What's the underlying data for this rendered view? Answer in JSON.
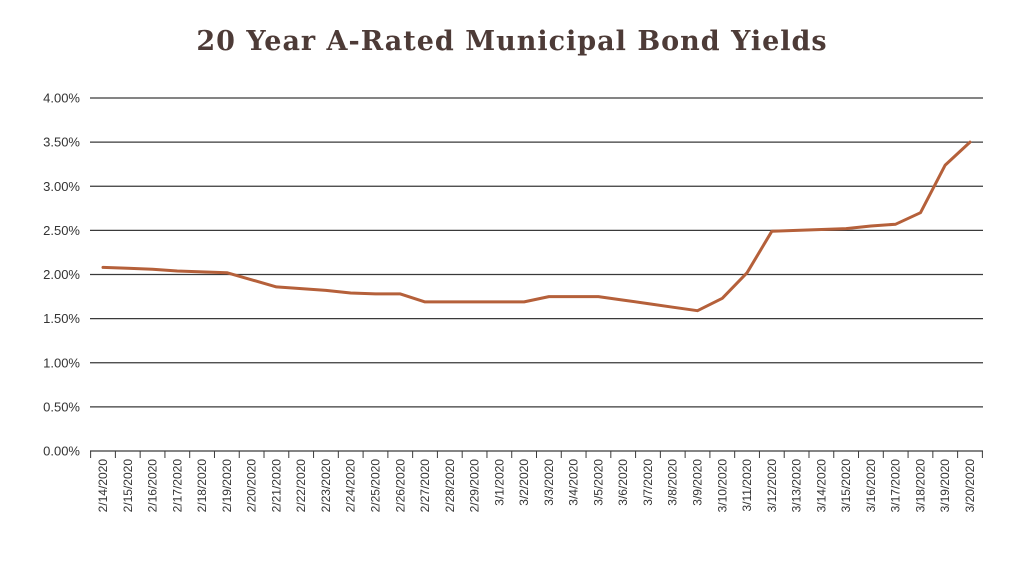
{
  "colors": {
    "line": "#b5603a",
    "title": "#4d3b37",
    "grid": "#3a3a3a"
  },
  "chart_data": {
    "type": "line",
    "title": "20 Year A-Rated Municipal Bond Yields",
    "xlabel": "",
    "ylabel": "",
    "ylim": [
      0,
      0.04
    ],
    "yticks": [
      "0.00%",
      "0.50%",
      "1.00%",
      "1.50%",
      "2.00%",
      "2.50%",
      "3.00%",
      "3.50%",
      "4.00%"
    ],
    "grid": true,
    "legend": "none",
    "categories": [
      "2/14/2020",
      "2/15/2020",
      "2/16/2020",
      "2/17/2020",
      "2/18/2020",
      "2/19/2020",
      "2/20/2020",
      "2/21/2020",
      "2/22/2020",
      "2/23/2020",
      "2/24/2020",
      "2/25/2020",
      "2/26/2020",
      "2/27/2020",
      "2/28/2020",
      "2/29/2020",
      "3/1/2020",
      "3/2/2020",
      "3/3/2020",
      "3/4/2020",
      "3/5/2020",
      "3/6/2020",
      "3/7/2020",
      "3/8/2020",
      "3/9/2020",
      "3/10/2020",
      "3/11/2020",
      "3/12/2020",
      "3/13/2020",
      "3/14/2020",
      "3/15/2020",
      "3/16/2020",
      "3/17/2020",
      "3/18/2020",
      "3/19/2020",
      "3/20/2020"
    ],
    "series": [
      {
        "values": [
          0.0208,
          0.0207,
          0.0206,
          0.0204,
          0.0203,
          0.0202,
          0.0194,
          0.0186,
          0.0184,
          0.0182,
          0.0179,
          0.0178,
          0.0178,
          0.0169,
          0.0169,
          0.0169,
          0.0169,
          0.0169,
          0.0175,
          0.0175,
          0.0175,
          0.0171,
          0.0167,
          0.0163,
          0.0159,
          0.0173,
          0.0202,
          0.0249,
          0.025,
          0.0251,
          0.0252,
          0.0255,
          0.0257,
          0.027,
          0.0324,
          0.035
        ]
      }
    ]
  }
}
